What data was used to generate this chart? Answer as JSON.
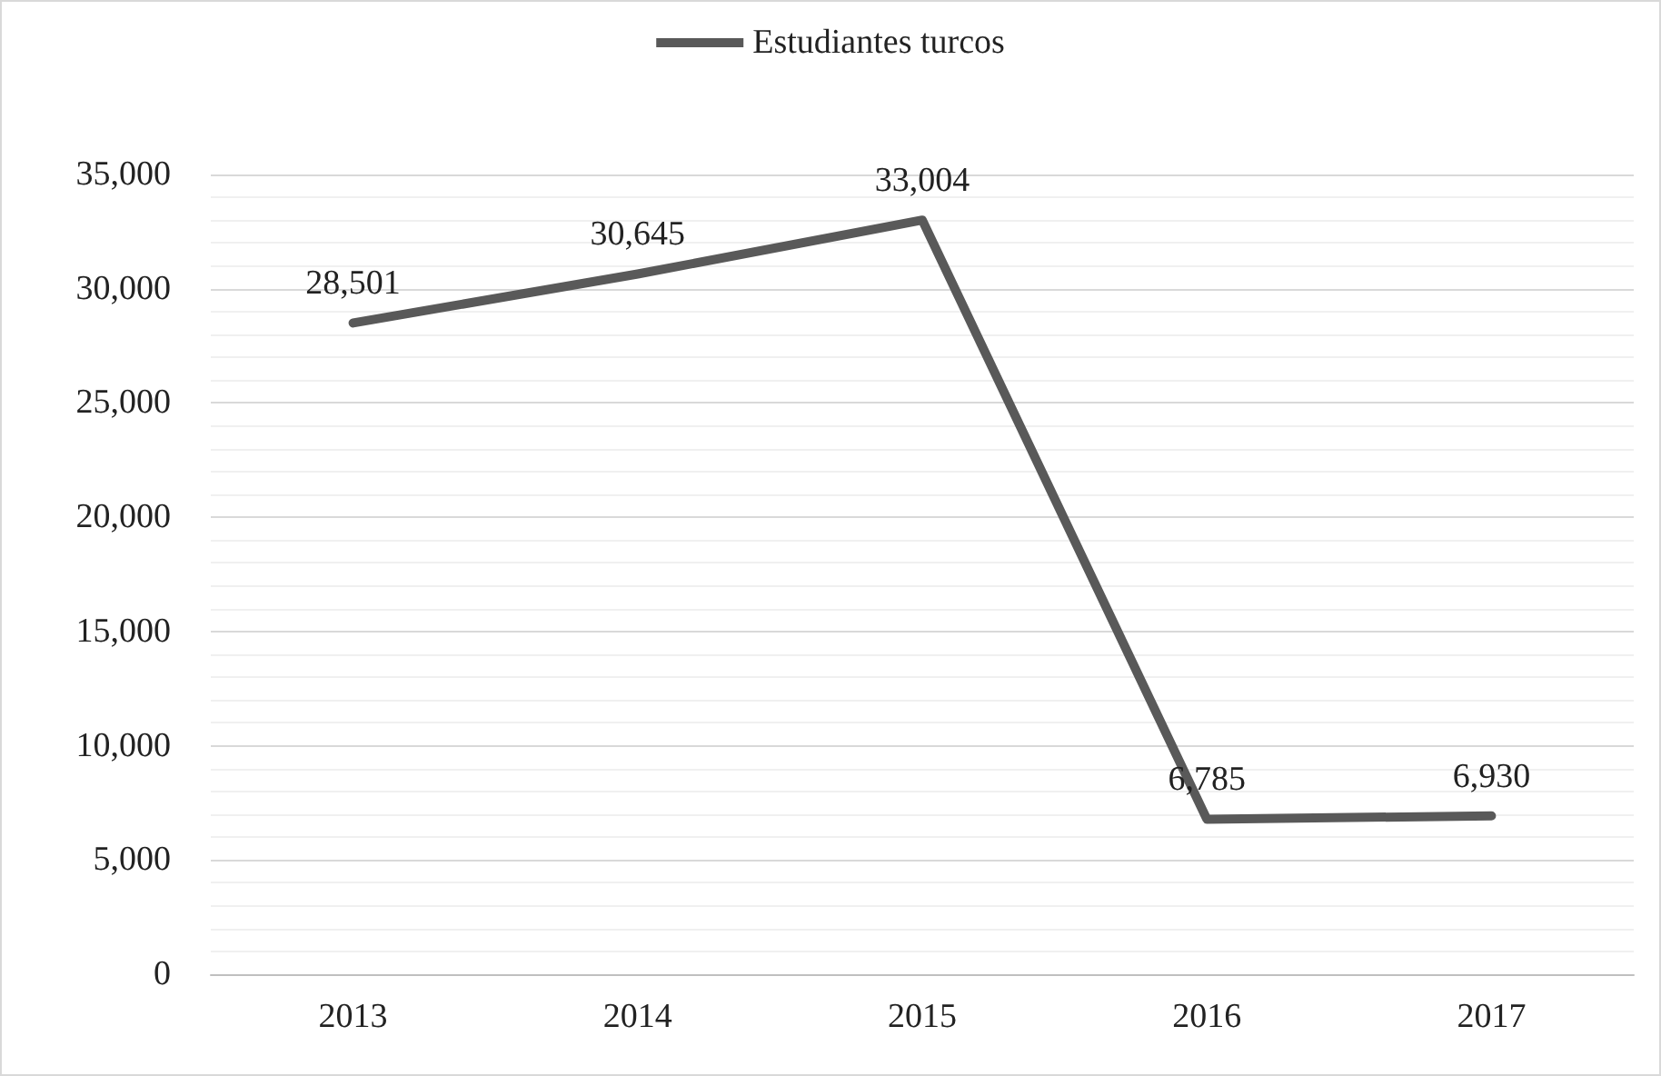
{
  "chart_data": {
    "type": "line",
    "categories": [
      "2013",
      "2014",
      "2015",
      "2016",
      "2017"
    ],
    "series": [
      {
        "name": "Estudiantes turcos",
        "color": "#595959",
        "values": [
          28501,
          30645,
          33004,
          6785,
          6930
        ],
        "value_labels": [
          "28,501",
          "30,645",
          "33,004",
          "6,785",
          "6,930"
        ]
      }
    ],
    "ylim": [
      0,
      35000
    ],
    "yticks": [
      0,
      {
        "value": 5000,
        "label": "5,000"
      },
      {
        "value": 10000,
        "label": "10,000"
      },
      {
        "value": 15000,
        "label": "15,000"
      },
      {
        "value": 20000,
        "label": "20,000"
      },
      {
        "value": 25000,
        "label": "25,000"
      },
      {
        "value": 30000,
        "label": "30,000"
      },
      {
        "value": 35000,
        "label": "35,000"
      }
    ],
    "grid": "y",
    "legend": "top",
    "marker": "none",
    "line_style": "solid"
  }
}
